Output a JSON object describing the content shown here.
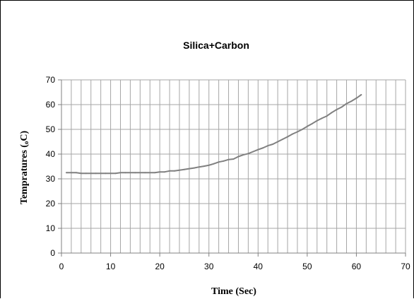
{
  "chart_data": {
    "type": "line",
    "title": "Silica+Carbon",
    "xlabel": "Time (Sec)",
    "ylabel": "Tempratures (oC)",
    "ylabel_parts": [
      "Tempratures (",
      "o",
      "C)"
    ],
    "xlim": [
      0,
      70
    ],
    "ylim": [
      0,
      70
    ],
    "xticks": [
      0,
      10,
      20,
      30,
      40,
      50,
      60,
      70
    ],
    "yticks": [
      0,
      10,
      20,
      30,
      40,
      50,
      60,
      70
    ],
    "grid": true,
    "legend": "none",
    "series": [
      {
        "color": "#808080",
        "x": [
          1,
          2,
          3,
          4,
          5,
          6,
          7,
          8,
          9,
          10,
          11,
          12,
          13,
          14,
          15,
          16,
          17,
          18,
          19,
          20,
          21,
          22,
          23,
          24,
          25,
          26,
          27,
          28,
          29,
          30,
          31,
          32,
          33,
          34,
          35,
          36,
          37,
          38,
          39,
          40,
          41,
          42,
          43,
          44,
          45,
          46,
          47,
          48,
          49,
          50,
          51,
          52,
          53,
          54,
          55,
          56,
          57,
          58,
          59,
          60,
          61
        ],
        "y": [
          32.5,
          32.5,
          32.5,
          32.2,
          32.2,
          32.2,
          32.2,
          32.2,
          32.2,
          32.2,
          32.2,
          32.5,
          32.5,
          32.5,
          32.5,
          32.5,
          32.5,
          32.5,
          32.5,
          32.8,
          32.8,
          33.2,
          33.2,
          33.5,
          33.8,
          34.1,
          34.4,
          34.8,
          35.1,
          35.5,
          36.1,
          36.8,
          37.2,
          37.8,
          38.0,
          39.0,
          39.7,
          40.2,
          41.0,
          41.8,
          42.5,
          43.4,
          44.0,
          45.0,
          46.0,
          47.0,
          48.1,
          49.0,
          50.0,
          51.2,
          52.3,
          53.5,
          54.5,
          55.4,
          56.8,
          58.0,
          59.0,
          60.4,
          61.4,
          62.6,
          64.0
        ]
      }
    ]
  }
}
